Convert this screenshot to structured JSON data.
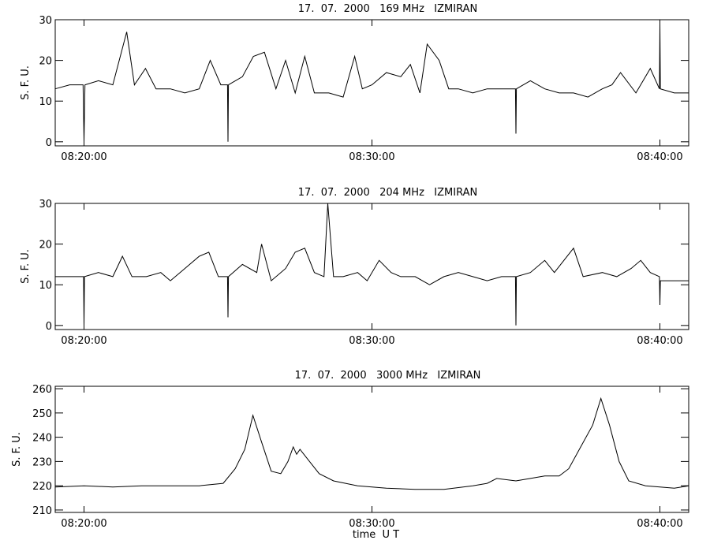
{
  "chart_data": [
    {
      "type": "line",
      "title": "17.  07.  2000   169 MHz   IZMIRAN",
      "ylabel": "S. F. U.",
      "xlim": [
        "08:19:00",
        "08:41:00"
      ],
      "xticks": [
        "08:20:00",
        "08:30:00",
        "08:40:00"
      ],
      "ylim": [
        -1,
        30
      ],
      "yticks": [
        0,
        10,
        20,
        30
      ],
      "color": "#000000",
      "x": [
        "08:19:00",
        "08:19:30",
        "08:19:58",
        "08:20:00",
        "08:20:02",
        "08:20:30",
        "08:21:00",
        "08:21:29",
        "08:21:45",
        "08:22:08",
        "08:22:30",
        "08:23:00",
        "08:23:30",
        "08:24:00",
        "08:24:23",
        "08:24:45",
        "08:24:59",
        "08:25:00",
        "08:25:01",
        "08:25:30",
        "08:25:53",
        "08:26:16",
        "08:26:40",
        "08:27:00",
        "08:27:20",
        "08:27:40",
        "08:28:00",
        "08:28:30",
        "08:29:00",
        "08:29:24",
        "08:29:40",
        "08:30:00",
        "08:30:30",
        "08:31:00",
        "08:31:20",
        "08:31:40",
        "08:31:55",
        "08:32:20",
        "08:32:40",
        "08:33:00",
        "08:33:30",
        "08:34:00",
        "08:34:30",
        "08:34:59",
        "08:35:00",
        "08:35:01",
        "08:35:30",
        "08:36:00",
        "08:36:30",
        "08:37:00",
        "08:37:30",
        "08:38:00",
        "08:38:20",
        "08:38:38",
        "08:39:10",
        "08:39:40",
        "08:39:59",
        "08:40:00",
        "08:40:01",
        "08:40:30",
        "08:41:00"
      ],
      "values": [
        13,
        14,
        14,
        0,
        14,
        15,
        14,
        27,
        14,
        18,
        13,
        13,
        12,
        13,
        20,
        14,
        14,
        0,
        14,
        16,
        21,
        22,
        13,
        20,
        12,
        21,
        12,
        12,
        11,
        21,
        13,
        14,
        17,
        16,
        19,
        12,
        24,
        20,
        13,
        13,
        12,
        13,
        13,
        13,
        2,
        13,
        15,
        13,
        12,
        12,
        11,
        13,
        14,
        17,
        12,
        18,
        13,
        29,
        13,
        12,
        12
      ]
    },
    {
      "type": "line",
      "title": "17.  07.  2000   204 MHz   IZMIRAN",
      "ylabel": "S. F. U.",
      "xlim": [
        "08:19:00",
        "08:41:00"
      ],
      "xticks": [
        "08:20:00",
        "08:30:00",
        "08:40:00"
      ],
      "ylim": [
        -1,
        30
      ],
      "yticks": [
        0,
        10,
        20,
        30
      ],
      "color": "#000000",
      "x": [
        "08:19:00",
        "08:19:30",
        "08:19:59",
        "08:20:00",
        "08:20:01",
        "08:20:30",
        "08:21:00",
        "08:21:20",
        "08:21:40",
        "08:22:10",
        "08:22:40",
        "08:23:00",
        "08:23:30",
        "08:24:00",
        "08:24:20",
        "08:24:40",
        "08:24:59",
        "08:25:00",
        "08:25:01",
        "08:25:30",
        "08:26:00",
        "08:26:10",
        "08:26:30",
        "08:27:00",
        "08:27:20",
        "08:27:40",
        "08:28:00",
        "08:28:20",
        "08:28:28",
        "08:28:40",
        "08:29:00",
        "08:29:30",
        "08:29:50",
        "08:30:15",
        "08:30:40",
        "08:31:00",
        "08:31:30",
        "08:32:00",
        "08:32:30",
        "08:33:00",
        "08:33:30",
        "08:34:00",
        "08:34:30",
        "08:34:59",
        "08:35:00",
        "08:35:01",
        "08:35:30",
        "08:36:00",
        "08:36:20",
        "08:37:00",
        "08:37:20",
        "08:38:00",
        "08:38:30",
        "08:39:00",
        "08:39:20",
        "08:39:40",
        "08:39:59",
        "08:40:00",
        "08:40:01",
        "08:40:30",
        "08:41:00"
      ],
      "values": [
        12,
        12,
        12,
        0,
        12,
        13,
        12,
        17,
        12,
        12,
        13,
        11,
        14,
        17,
        18,
        12,
        12,
        2,
        12,
        15,
        13,
        20,
        11,
        14,
        18,
        19,
        13,
        12,
        30,
        12,
        12,
        13,
        11,
        16,
        13,
        12,
        12,
        10,
        12,
        13,
        12,
        11,
        12,
        12,
        0,
        12,
        13,
        16,
        13,
        19,
        12,
        13,
        12,
        14,
        16,
        13,
        12,
        5,
        11,
        11,
        11
      ]
    },
    {
      "type": "line",
      "title": "17.  07.  2000   3000 MHz   IZMIRAN",
      "ylabel": "S. F. U.",
      "xlabel": "time  U T",
      "xlim": [
        "08:19:00",
        "08:41:00"
      ],
      "xticks": [
        "08:20:00",
        "08:30:00",
        "08:40:00"
      ],
      "ylim": [
        209,
        261
      ],
      "yticks": [
        210,
        220,
        230,
        240,
        250,
        260
      ],
      "color": "#000000",
      "x": [
        "08:19:00",
        "08:20:00",
        "08:21:00",
        "08:22:00",
        "08:23:00",
        "08:24:00",
        "08:24:50",
        "08:25:15",
        "08:25:35",
        "08:25:52",
        "08:26:10",
        "08:26:30",
        "08:26:50",
        "08:27:05",
        "08:27:16",
        "08:27:23",
        "08:27:30",
        "08:27:50",
        "08:28:10",
        "08:28:40",
        "08:29:30",
        "08:30:30",
        "08:31:30",
        "08:32:30",
        "08:33:30",
        "08:34:00",
        "08:34:20",
        "08:35:00",
        "08:35:30",
        "08:36:00",
        "08:36:30",
        "08:36:50",
        "08:37:15",
        "08:37:40",
        "08:37:57",
        "08:38:15",
        "08:38:35",
        "08:38:55",
        "08:39:30",
        "08:40:30",
        "08:41:00"
      ],
      "values": [
        219.5,
        220,
        219.5,
        220,
        220,
        220,
        221,
        227,
        235,
        249,
        238,
        226,
        225,
        230,
        236,
        233,
        235,
        230,
        225,
        222,
        220,
        219,
        218.5,
        218.5,
        220,
        221,
        223,
        222,
        223,
        224,
        224,
        227,
        236,
        245,
        256,
        245,
        230,
        222,
        220,
        219,
        220
      ]
    }
  ]
}
